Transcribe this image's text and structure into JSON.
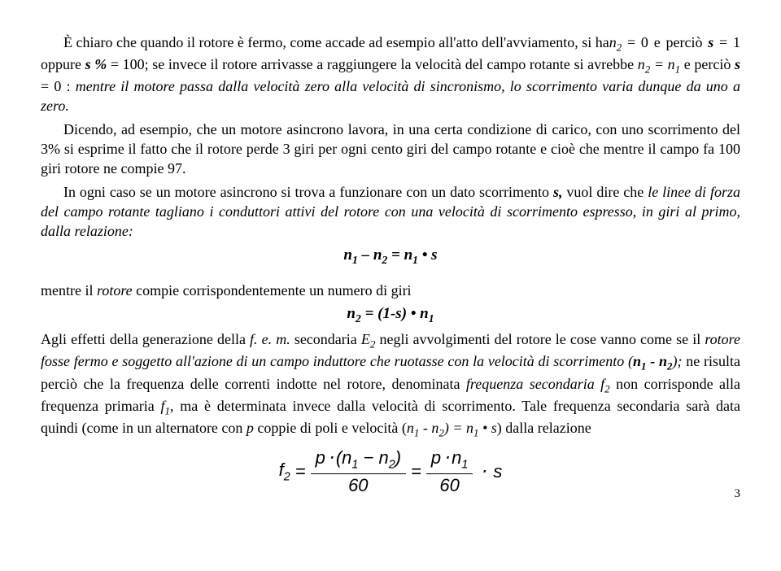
{
  "p1": "È chiaro che quando il rotore è fermo, come accade ad esempio all'atto dell'avviamento, si ha ",
  "p1b": " = 0 e perciò ",
  "p1c": " = 1 oppure ",
  "p1d": " = 100; se invece il rotore arrivasse a raggiungere la velocità del campo rotante si avrebbe ",
  "p1e": " e perciò ",
  "p1f": " = 0 : ",
  "p1g": "mentre il motore passa dalla velocità zero alla velocità di sincronismo, lo scorrimento varia dunque da uno a zero.",
  "n2": "n",
  "n2sub": "2",
  "s": "s",
  "spct": "s %",
  "n2eqn1": "n",
  "n2eqn1sub": "2",
  "eq": " = ",
  "n1": "n",
  "n1sub": "1",
  "p2a": "Dicendo, ad esempio, che un motore asincrono lavora, in una certa condizione di carico, con uno scorrimento del 3%  si esprime il fatto che il rotore perde 3 giri per ogni cento giri del campo rotante e cioè che mentre il campo fa 100 giri rotore ne compie 97.",
  "p3a": "In ogni caso se un motore asincrono si trova a funzionare con un dato scorrimento ",
  "p3b": " vuol dire che ",
  "p3c": "le linee di forza del campo rotante tagliano i conduttori attivi del rotore con una velocità di scorrimento espresso, in giri al primo, dalla relazione:",
  "scomma": "s,",
  "f1_lhs_n1": "n",
  "f1_lhs_n1sub": "1",
  "f1_minus": " – ",
  "f1_lhs_n2": "n",
  "f1_lhs_n2sub": "2",
  "f1_eq": " = ",
  "f1_rhs_n1": "n",
  "f1_rhs_n1sub": "1",
  "f1_dot": " • ",
  "f1_s": "s",
  "p4a": "mentre il ",
  "p4b": "rotore",
  "p4c": " compie corrispondentemente un numero di giri",
  "f2_n2": "n",
  "f2_n2sub": "2",
  "f2_eq": "  =  ",
  "f2_par": "(1-s) • ",
  "f2_n1": "n",
  "f2_n1sub": "1",
  "p5a": "Agli effetti della generazione della ",
  "p5b": "f. e. m.",
  "p5c": " secondaria ",
  "p5d": "E",
  "p5dsub": "2",
  "p5e": " negli avvolgimenti del rotore le cose vanno come se il ",
  "p5f": "rotore fosse fermo e soggetto all'azione di un campo induttore che ruotasse con la velocità di scorrimento (",
  "p5g": " - ",
  "p5h": ");",
  "p5i": " ne risulta perciò che la frequenza delle correnti indotte nel rotore, denominata ",
  "p5j": "frequenza secondaria f",
  "p5jsub": "2",
  "p5k": " non corrisponde alla frequenza primaria ",
  "p5l": "f",
  "p5lsub": "1",
  "p5m": ", ma  è determinata invece dalla velocità di scorrimento. Tale frequenza secondaria sarà data quindi (come in un alternatore con ",
  "p5n": "p",
  "p5o": " coppie di poli e velocità (",
  "p5p": " - ",
  "p5q": ") = ",
  "p5r": " • ",
  "p5s": "s",
  "p5t": ") dalla relazione",
  "ff_f": "f",
  "ff_2": "2",
  "ff_eq": "=",
  "ff_p": "p",
  "ff_lpar": "(",
  "ff_n1": "n",
  "ff_n1sub": "1",
  "ff_minus": "−",
  "ff_n2": "n",
  "ff_n2sub": "2",
  "ff_rpar": ")",
  "ff_60": "60",
  "ff_eq2": "=",
  "ff_s": "s",
  "pagenum": "3"
}
